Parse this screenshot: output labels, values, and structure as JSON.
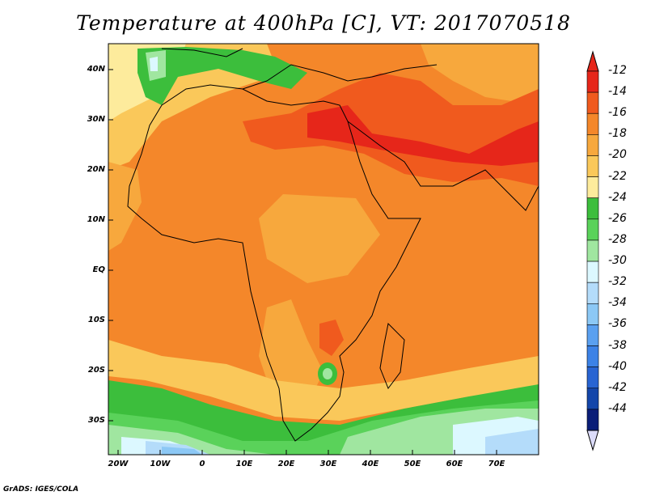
{
  "title": "Temperature at 400hPa [C], VT: 2017070518",
  "credit": "GrADS: IGES/COLA",
  "axes": {
    "y_ticks": [
      "40N",
      "30N",
      "20N",
      "10N",
      "EQ",
      "10S",
      "20S",
      "30S"
    ],
    "x_ticks": [
      "20W",
      "10W",
      "0",
      "10E",
      "20E",
      "30E",
      "40E",
      "50E",
      "60E",
      "70E"
    ]
  },
  "colorbar": {
    "labels": [
      "-12",
      "-14",
      "-16",
      "-18",
      "-20",
      "-22",
      "-24",
      "-26",
      "-28",
      "-30",
      "-32",
      "-34",
      "-36",
      "-38",
      "-40",
      "-42",
      "-44"
    ],
    "colors": [
      "#e6261a",
      "#f05a1e",
      "#f4872a",
      "#f7a83d",
      "#fac85a",
      "#fdeb9c",
      "#3cbe3c",
      "#5ad25a",
      "#a0e6a0",
      "#dcf8ff",
      "#b4dcfa",
      "#8cc8f5",
      "#5aa0f0",
      "#3c82e6",
      "#2864d2",
      "#1446aa",
      "#0a1e78"
    ],
    "extension_top_color": "#e6261a",
    "extension_bottom_color": "#dcdcfa"
  }
}
